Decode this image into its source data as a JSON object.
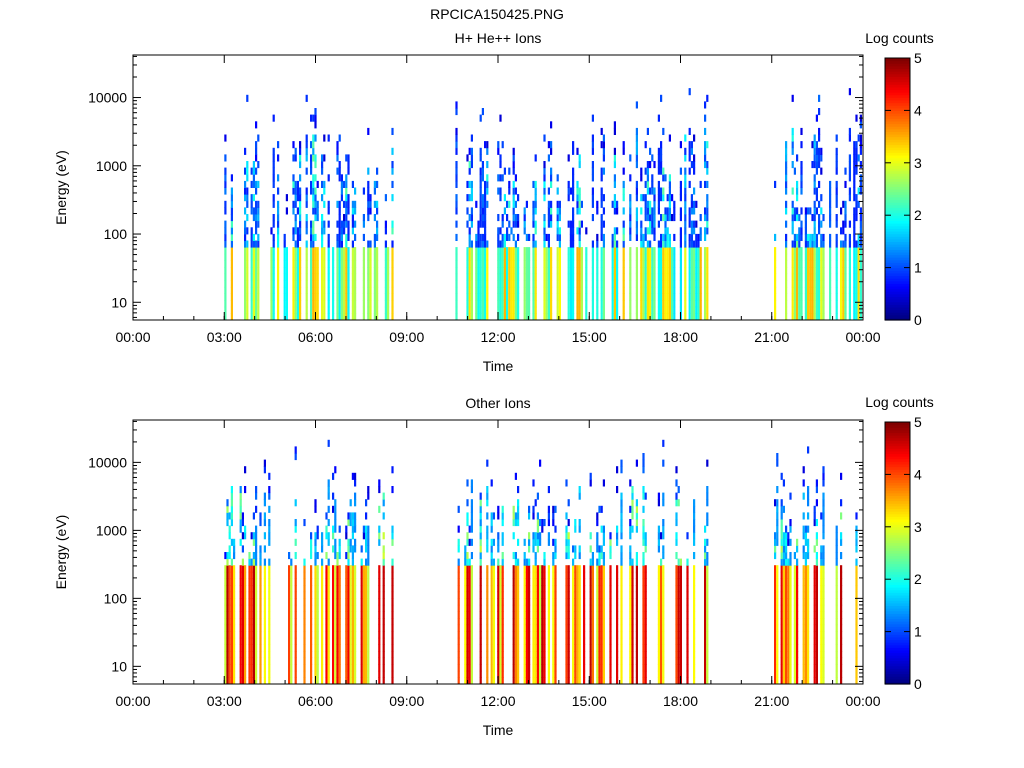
{
  "page_title": "RPCICA150425.PNG",
  "chart_data": [
    {
      "type": "heatmap",
      "title": "H+ He++ Ions",
      "xlabel": "Time",
      "ylabel": "Energy (eV)",
      "x_ticks": [
        "00:00",
        "03:00",
        "06:00",
        "09:00",
        "12:00",
        "15:00",
        "18:00",
        "21:00",
        "00:00"
      ],
      "x_range_hours": [
        0,
        24
      ],
      "y_scale": "log",
      "y_range": [
        5.5,
        42000
      ],
      "y_ticks": [
        {
          "value": 10,
          "label": "10"
        },
        {
          "value": 100,
          "label": "100"
        },
        {
          "value": 1000,
          "label": "1000"
        },
        {
          "value": 10000,
          "label": "10000"
        }
      ],
      "colorbar": {
        "label": "Log counts",
        "range": [
          0,
          5
        ],
        "ticks": [
          "0",
          "1",
          "2",
          "3",
          "4",
          "5"
        ],
        "colormap": "jet"
      },
      "data_intervals_hours": [
        [
          3.0,
          8.5
        ],
        [
          10.6,
          18.9
        ],
        [
          21.0,
          23.9
        ]
      ],
      "intensity_level": "low",
      "low_energy_cutoff_eV": 60,
      "scatter_top_eV": 4000
    },
    {
      "type": "heatmap",
      "title": "Other Ions",
      "xlabel": "Time",
      "ylabel": "Energy (eV)",
      "x_ticks": [
        "00:00",
        "03:00",
        "06:00",
        "09:00",
        "12:00",
        "15:00",
        "18:00",
        "21:00",
        "00:00"
      ],
      "x_range_hours": [
        0,
        24
      ],
      "y_scale": "log",
      "y_range": [
        5.5,
        42000
      ],
      "y_ticks": [
        {
          "value": 10,
          "label": "10"
        },
        {
          "value": 100,
          "label": "100"
        },
        {
          "value": 1000,
          "label": "1000"
        },
        {
          "value": 10000,
          "label": "10000"
        }
      ],
      "colorbar": {
        "label": "Log counts",
        "range": [
          0,
          5
        ],
        "ticks": [
          "0",
          "1",
          "2",
          "3",
          "4",
          "5"
        ],
        "colormap": "jet"
      },
      "data_intervals_hours": [
        [
          3.0,
          8.5
        ],
        [
          10.6,
          18.9
        ],
        [
          21.0,
          23.9
        ]
      ],
      "intensity_level": "high",
      "low_energy_cutoff_eV": 300,
      "scatter_top_eV": 5000
    }
  ]
}
